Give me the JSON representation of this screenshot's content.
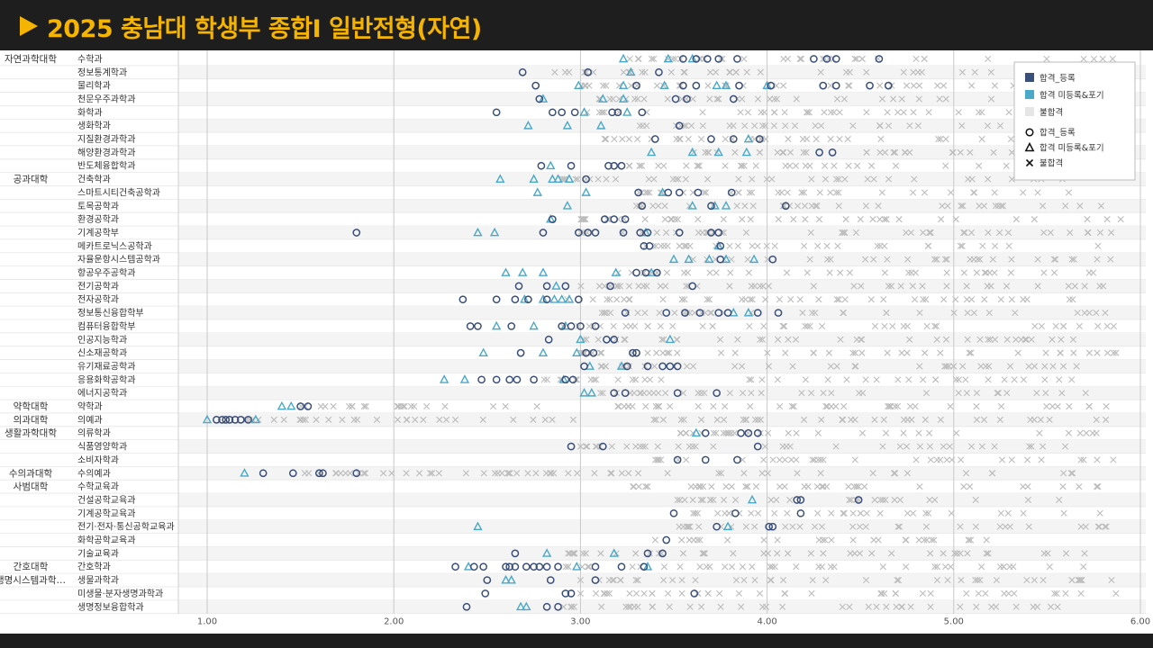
{
  "title": "2025 충남대 학생부 종합I 일반전형(자연)",
  "colors": {
    "header_bg": "#1e1e1e",
    "title": "#f5b400",
    "accepted_registered": "#3a4f7a",
    "accepted_not_registered": "#4aa8c8",
    "rejected": "#bdbdbd"
  },
  "legend": {
    "swatches": [
      "합격_등록",
      "합격 미등록&포기",
      "불합격"
    ],
    "markers": [
      "합격_등록",
      "합격 미등록&포기",
      "불합격"
    ]
  },
  "chart_data": {
    "type": "scatter",
    "xlim": [
      0.9,
      6.0
    ],
    "xticks": [
      "1.00",
      "2.00",
      "3.00",
      "4.00",
      "5.00",
      "6.00"
    ],
    "grid": true,
    "legend_position": "top-right",
    "colleges": [
      {
        "name": "자연과학대학",
        "first_row": 0
      },
      {
        "name": "공과대학",
        "first_row": 9
      },
      {
        "name": "약학대학",
        "first_row": 26
      },
      {
        "name": "의과대학",
        "first_row": 27
      },
      {
        "name": "생활과학대학",
        "first_row": 28
      },
      {
        "name": "수의과대학",
        "first_row": 31
      },
      {
        "name": "사범대학",
        "first_row": 32
      },
      {
        "name": "간호대학",
        "first_row": 38
      },
      {
        "name": "생명시스템과학…",
        "first_row": 39
      }
    ],
    "categories": [
      {
        "name": "수학과",
        "registered": [
          3.55,
          3.62,
          3.68,
          3.74,
          3.84,
          4.25,
          4.32,
          4.37,
          4.6
        ],
        "unregistered": [
          3.23,
          3.47,
          3.6
        ],
        "rejected_range": [
          3.2,
          5.9
        ]
      },
      {
        "name": "정보통계학과",
        "registered": [
          2.69,
          3.04,
          3.42
        ],
        "unregistered": [
          3.27
        ],
        "rejected_range": [
          2.8,
          5.6
        ]
      },
      {
        "name": "물리학과",
        "registered": [
          2.76,
          3.3,
          3.55,
          3.62,
          3.85,
          4.02,
          4.3,
          4.37,
          4.55,
          4.65
        ],
        "unregistered": [
          2.99,
          3.23,
          3.45,
          3.73,
          3.78,
          4.0
        ],
        "rejected_range": [
          3.0,
          5.8
        ]
      },
      {
        "name": "천문우주과학과",
        "registered": [
          2.78,
          3.51,
          3.57,
          3.82
        ],
        "unregistered": [
          2.8,
          3.12,
          3.23
        ],
        "rejected_range": [
          3.1,
          5.4
        ]
      },
      {
        "name": "화학과",
        "registered": [
          2.55,
          2.85,
          2.9,
          2.97,
          3.17,
          3.2,
          3.33
        ],
        "unregistered": [
          3.02,
          3.25
        ],
        "rejected_range": [
          3.0,
          5.9
        ]
      },
      {
        "name": "생화학과",
        "registered": [
          3.53
        ],
        "unregistered": [
          2.72,
          2.93,
          3.11
        ],
        "rejected_range": [
          3.3,
          5.5
        ]
      },
      {
        "name": "지질환경과학과",
        "registered": [
          3.4,
          3.7,
          3.82,
          3.96
        ],
        "unregistered": [
          3.9
        ],
        "rejected_range": [
          3.1,
          5.8
        ]
      },
      {
        "name": "해양환경과학과",
        "registered": [
          4.28,
          4.35
        ],
        "unregistered": [
          3.38,
          3.6,
          3.74,
          3.89
        ],
        "rejected_range": [
          3.5,
          5.8
        ]
      },
      {
        "name": "반도체융합학과",
        "registered": [
          2.79,
          2.95,
          3.15,
          3.18,
          3.22
        ],
        "unregistered": [
          2.84
        ],
        "rejected_range": [
          3.2,
          5.7
        ]
      },
      {
        "name": "건축학과",
        "registered": [
          3.03
        ],
        "unregistered": [
          2.57,
          2.75,
          2.85,
          2.88,
          2.94
        ],
        "rejected_range": [
          2.9,
          5.6
        ]
      },
      {
        "name": "스마트시티건축공학과",
        "registered": [
          3.31,
          3.47,
          3.53,
          3.63,
          3.81
        ],
        "unregistered": [
          2.77,
          3.03,
          3.44
        ],
        "rejected_range": [
          3.2,
          5.8
        ]
      },
      {
        "name": "토목공학과",
        "registered": [
          3.33,
          3.7,
          4.1
        ],
        "unregistered": [
          2.93,
          3.6,
          3.72,
          3.78
        ],
        "rejected_range": [
          3.3,
          5.9
        ]
      },
      {
        "name": "환경공학과",
        "registered": [
          2.85,
          3.13,
          3.18,
          3.24
        ],
        "unregistered": [
          2.84
        ],
        "rejected_range": [
          3.0,
          5.9
        ]
      },
      {
        "name": "기계공학부",
        "registered": [
          1.8,
          2.8,
          2.99,
          3.04,
          3.08,
          3.23,
          3.32,
          3.36,
          3.53,
          3.7,
          3.74
        ],
        "unregistered": [
          2.45,
          2.54,
          3.35
        ],
        "rejected_range": [
          3.0,
          5.9
        ]
      },
      {
        "name": "메카트로닉스공학과",
        "registered": [
          3.34,
          3.37,
          3.75
        ],
        "unregistered": [
          3.74
        ],
        "rejected_range": [
          3.3,
          5.8
        ]
      },
      {
        "name": "자율운항시스템공학과",
        "registered": [
          3.75,
          4.03
        ],
        "unregistered": [
          3.5,
          3.58,
          3.69,
          3.78,
          3.93
        ],
        "rejected_range": [
          3.6,
          5.9
        ]
      },
      {
        "name": "항공우주공학과",
        "registered": [
          3.3,
          3.35,
          3.41
        ],
        "unregistered": [
          2.6,
          2.69,
          2.8,
          3.19,
          3.38
        ],
        "rejected_range": [
          3.2,
          5.8
        ]
      },
      {
        "name": "전기공학과",
        "registered": [
          2.67,
          2.82,
          2.92,
          3.16,
          3.6
        ],
        "unregistered": [
          2.87
        ],
        "rejected_range": [
          3.0,
          5.9
        ]
      },
      {
        "name": "전자공학과",
        "registered": [
          2.37,
          2.55,
          2.65,
          2.72,
          2.82,
          2.99
        ],
        "unregistered": [
          2.7,
          2.8,
          2.86,
          2.9,
          2.94
        ],
        "rejected_range": [
          2.9,
          5.9
        ]
      },
      {
        "name": "정보통신융합학부",
        "registered": [
          3.24,
          3.46,
          3.56,
          3.64,
          3.74,
          3.79,
          3.95,
          4.06
        ],
        "unregistered": [
          3.82,
          3.9
        ],
        "rejected_range": [
          3.1,
          5.9
        ]
      },
      {
        "name": "컴퓨터융합학부",
        "registered": [
          2.41,
          2.45,
          2.63,
          2.9,
          2.95,
          3.0,
          3.08
        ],
        "unregistered": [
          2.55,
          2.75,
          2.92
        ],
        "rejected_range": [
          2.9,
          5.9
        ]
      },
      {
        "name": "인공지능학과",
        "registered": [
          2.83,
          3.14,
          3.18
        ],
        "unregistered": [
          3.0,
          3.48
        ],
        "rejected_range": [
          3.0,
          5.8
        ]
      },
      {
        "name": "신소재공학과",
        "registered": [
          2.68,
          3.03,
          3.07,
          3.28,
          3.3
        ],
        "unregistered": [
          2.48,
          2.8,
          2.98
        ],
        "rejected_range": [
          3.0,
          5.9
        ]
      },
      {
        "name": "유기재료공학과",
        "registered": [
          3.02,
          3.25,
          3.36,
          3.44,
          3.48,
          3.52
        ],
        "unregistered": [
          3.05,
          3.22
        ],
        "rejected_range": [
          3.1,
          5.8
        ]
      },
      {
        "name": "응용화학공학과",
        "registered": [
          2.47,
          2.55,
          2.62,
          2.66,
          2.75,
          2.92,
          2.96
        ],
        "unregistered": [
          2.27,
          2.38,
          2.91
        ],
        "rejected_range": [
          2.8,
          5.7
        ]
      },
      {
        "name": "에너지공학과",
        "registered": [
          3.18,
          3.24,
          3.52,
          3.73
        ],
        "unregistered": [
          3.02,
          3.06
        ],
        "rejected_range": [
          3.1,
          5.8
        ]
      },
      {
        "name": "약학과",
        "registered": [
          1.5,
          1.54
        ],
        "unregistered": [
          1.4,
          1.45
        ],
        "rejected_range": [
          1.5,
          5.9
        ]
      },
      {
        "name": "의예과",
        "registered": [
          1.05,
          1.08,
          1.1,
          1.12,
          1.15,
          1.18,
          1.22
        ],
        "unregistered": [
          1.0,
          1.26
        ],
        "rejected_range": [
          1.2,
          5.9
        ]
      },
      {
        "name": "의류학과",
        "registered": [
          3.67,
          3.86,
          3.9,
          3.95
        ],
        "unregistered": [
          3.62
        ],
        "rejected_range": [
          3.5,
          5.8
        ]
      },
      {
        "name": "식품영양학과",
        "registered": [
          2.95,
          3.12,
          3.95
        ],
        "unregistered": [],
        "rejected_range": [
          3.0,
          5.7
        ]
      },
      {
        "name": "소비자학과",
        "registered": [
          3.52,
          3.67,
          3.84
        ],
        "unregistered": [],
        "rejected_range": [
          3.4,
          5.9
        ]
      },
      {
        "name": "수의예과",
        "registered": [
          1.3,
          1.46,
          1.6,
          1.62,
          1.8
        ],
        "unregistered": [
          1.2
        ],
        "rejected_range": [
          1.4,
          5.7
        ]
      },
      {
        "name": "수학교육과",
        "registered": [],
        "unregistered": [],
        "rejected_range": [
          3.1,
          5.8
        ]
      },
      {
        "name": "건설공학교육과",
        "registered": [
          4.16,
          4.18,
          4.49
        ],
        "unregistered": [
          3.92
        ],
        "rejected_range": [
          3.5,
          5.6
        ]
      },
      {
        "name": "기계공학교육과",
        "registered": [
          3.5,
          3.83,
          4.18
        ],
        "unregistered": [],
        "rejected_range": [
          3.6,
          5.8
        ]
      },
      {
        "name": "전기·전자·통신공학교육과",
        "registered": [
          3.73,
          4.01,
          4.03
        ],
        "unregistered": [
          2.45,
          3.79
        ],
        "rejected_range": [
          3.5,
          5.9
        ]
      },
      {
        "name": "화학공학교육과",
        "registered": [
          3.46
        ],
        "unregistered": [],
        "rejected_range": [
          3.4,
          5.4
        ]
      },
      {
        "name": "기술교육과",
        "registered": [
          2.65,
          3.36,
          3.44
        ],
        "unregistered": [
          2.82,
          3.18
        ],
        "rejected_range": [
          2.9,
          5.8
        ]
      },
      {
        "name": "간호학과",
        "registered": [
          2.33,
          2.43,
          2.48,
          2.6,
          2.62,
          2.65,
          2.71,
          2.75,
          2.78,
          2.82,
          2.88,
          3.08,
          3.22,
          3.34
        ],
        "unregistered": [
          2.4,
          2.98,
          3.36
        ],
        "rejected_range": [
          2.9,
          5.7
        ]
      },
      {
        "name": "생물과학과",
        "registered": [
          2.5,
          2.84,
          3.08
        ],
        "unregistered": [
          2.6,
          2.63
        ],
        "rejected_range": [
          3.0,
          5.9
        ]
      },
      {
        "name": "미생물·분자생명과학과",
        "registered": [
          2.49,
          2.92,
          2.95,
          3.61
        ],
        "unregistered": [],
        "rejected_range": [
          3.0,
          5.9
        ]
      },
      {
        "name": "생명정보융합학과",
        "registered": [
          2.39,
          2.82,
          2.88
        ],
        "unregistered": [
          2.68,
          2.71
        ],
        "rejected_range": [
          2.9,
          5.7
        ]
      }
    ]
  }
}
